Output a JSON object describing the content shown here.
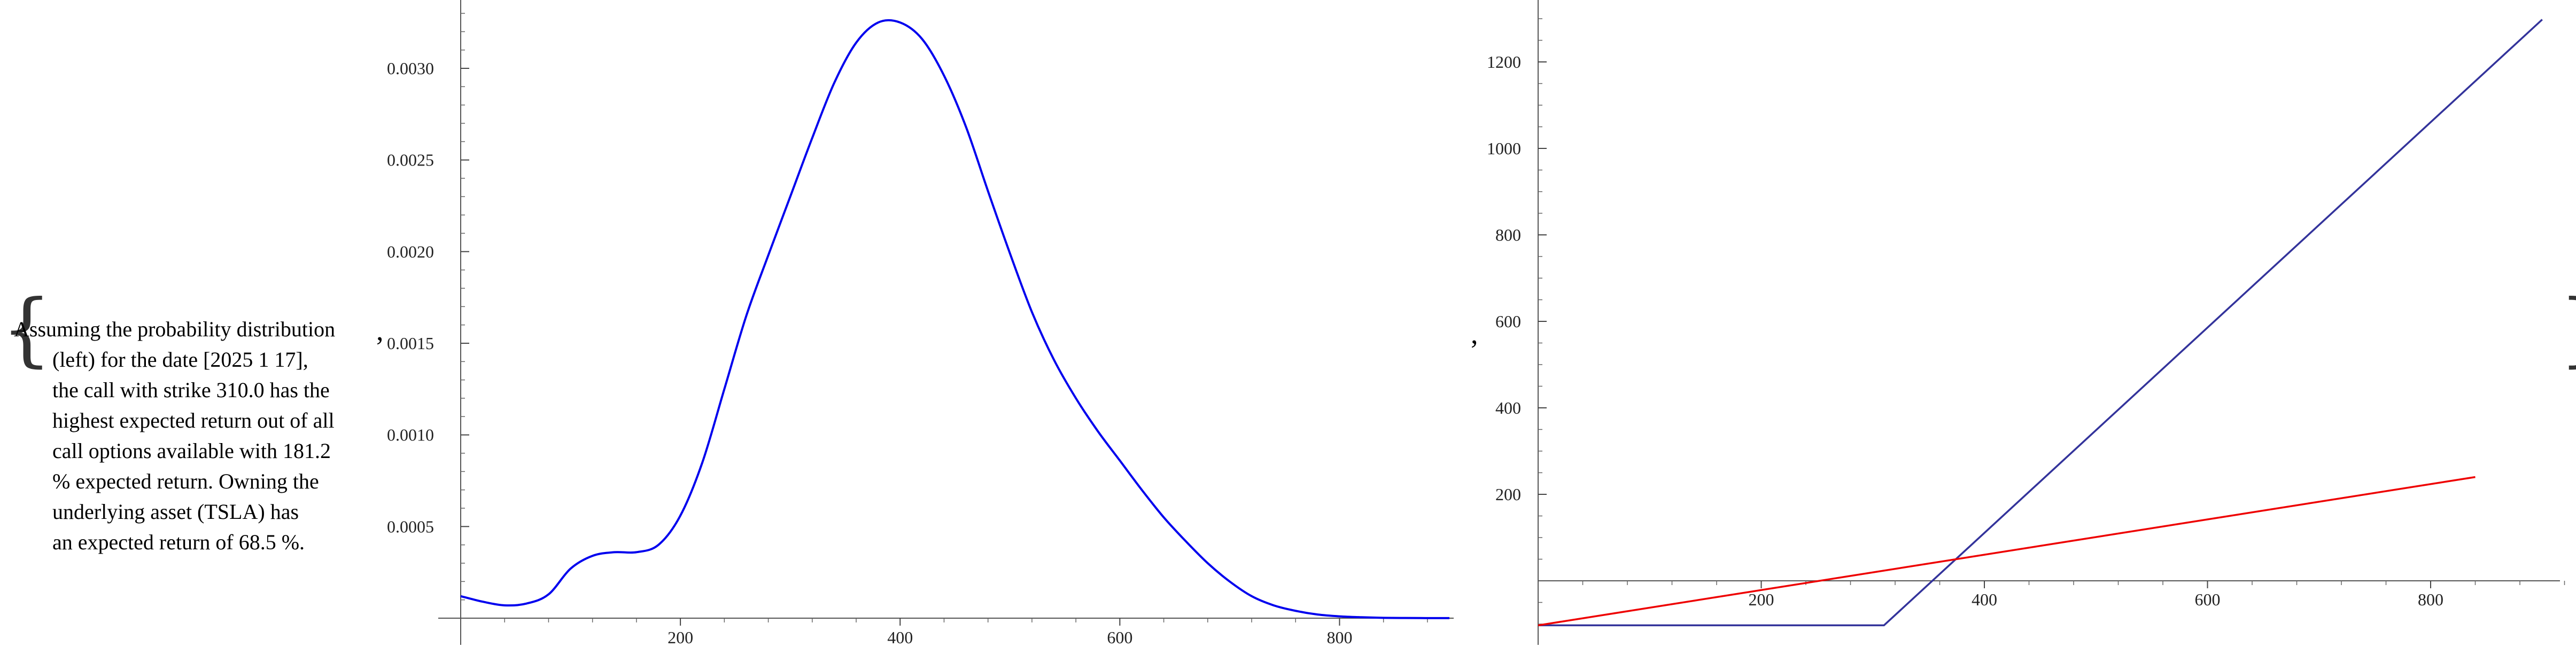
{
  "punctuation": {
    "open_brace": "{",
    "close_brace": "}",
    "comma": ","
  },
  "text_block": {
    "lines": [
      "Assuming the probability distribution",
      "(left) for the date [2025 1 17],",
      "the call with strike 310.0 has the",
      "highest expected return out of all",
      "call options available with 181.2",
      "% expected return. Owning the",
      "underlying asset (TSLA) has",
      "an expected return of 68.5 %."
    ]
  },
  "chart_data": [
    {
      "type": "line",
      "title": "",
      "xlabel": "",
      "ylabel": "",
      "xlim": [
        0,
        900
      ],
      "ylim": [
        0,
        0.0033
      ],
      "x_ticks": [
        200,
        400,
        600,
        800
      ],
      "y_ticks": [
        0.0005,
        0.001,
        0.0015,
        0.002,
        0.0025,
        0.003
      ],
      "y_tick_labels": [
        "0.0005",
        "0.0010",
        "0.0015",
        "0.0020",
        "0.0025",
        "0.0030"
      ],
      "grid": false,
      "color": "#0000ee",
      "series": [
        {
          "x": [
            0,
            20,
            40,
            60,
            80,
            100,
            120,
            140,
            160,
            180,
            200,
            220,
            240,
            260,
            280,
            300,
            320,
            340,
            360,
            380,
            400,
            420,
            440,
            460,
            480,
            500,
            520,
            540,
            560,
            580,
            600,
            620,
            640,
            660,
            680,
            700,
            720,
            740,
            760,
            780,
            800,
            820,
            840,
            860,
            880,
            900
          ],
          "y": [
            0.00012,
            9e-05,
            7e-05,
            8e-05,
            0.00013,
            0.00027,
            0.00034,
            0.00036,
            0.00036,
            0.0004,
            0.00056,
            0.00085,
            0.00125,
            0.00165,
            0.00198,
            0.0023,
            0.00262,
            0.00292,
            0.00314,
            0.00325,
            0.00325,
            0.00316,
            0.00296,
            0.00268,
            0.00233,
            0.00199,
            0.00167,
            0.00141,
            0.0012,
            0.00102,
            0.00086,
            0.0007,
            0.00055,
            0.00042,
            0.0003,
            0.0002,
            0.00012,
            7e-05,
            4e-05,
            2e-05,
            1e-05,
            5e-06,
            2e-06,
            1e-06,
            5e-07,
            2e-07
          ]
        }
      ]
    },
    {
      "type": "line",
      "title": "",
      "xlabel": "",
      "ylabel": "",
      "xlim": [
        0,
        920
      ],
      "ylim": [
        -125,
        1340
      ],
      "x_ticks": [
        200,
        400,
        600,
        800
      ],
      "y_ticks": [
        200,
        400,
        600,
        800,
        1000,
        1200
      ],
      "grid": false,
      "series": [
        {
          "color": "#33339b",
          "x": [
            0,
            310,
            900
          ],
          "y": [
            -103,
            -103,
            1298
          ]
        },
        {
          "color": "#ee0000",
          "x": [
            0,
            840
          ],
          "y": [
            -103,
            240
          ]
        }
      ]
    }
  ]
}
